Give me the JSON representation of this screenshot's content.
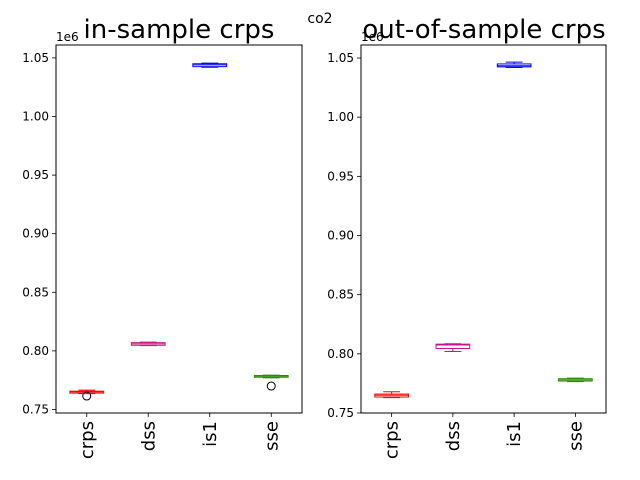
{
  "suptitle": "co2",
  "chart_data": [
    {
      "type": "box",
      "title": "in-sample crps",
      "offset_label": "1e6",
      "ylim": [
        747000,
        1061000
      ],
      "yticks": [
        750000,
        800000,
        850000,
        900000,
        950000,
        1000000,
        1050000
      ],
      "ytick_labels": [
        "0.75",
        "0.80",
        "0.85",
        "0.90",
        "0.95",
        "1.00",
        "1.05"
      ],
      "categories": [
        "crps",
        "dss",
        "is1",
        "sse"
      ],
      "boxes": [
        {
          "name": "crps",
          "color": "#ff0000",
          "min": 763500,
          "q1": 764000,
          "median": 765000,
          "q3": 765600,
          "max": 766500,
          "outliers": [
            761500
          ]
        },
        {
          "name": "dss",
          "color": "#c71585",
          "min": 804500,
          "q1": 804800,
          "median": 806000,
          "q3": 807000,
          "max": 807500,
          "outliers": []
        },
        {
          "name": "is1",
          "color": "#0000ff",
          "min": 1042000,
          "q1": 1042500,
          "median": 1044000,
          "q3": 1045000,
          "max": 1045500,
          "outliers": []
        },
        {
          "name": "sse",
          "color": "#2e8b00",
          "min": 777000,
          "q1": 777500,
          "median": 778000,
          "q3": 779000,
          "max": 779300,
          "outliers": [
            770000
          ]
        }
      ]
    },
    {
      "type": "box",
      "title": "out-of-sample crps",
      "offset_label": "1e6",
      "ylim": [
        750000,
        1061000
      ],
      "yticks": [
        750000,
        800000,
        850000,
        900000,
        950000,
        1000000,
        1050000
      ],
      "ytick_labels": [
        "0.75",
        "0.80",
        "0.85",
        "0.90",
        "0.95",
        "1.00",
        "1.05"
      ],
      "categories": [
        "crps",
        "dss",
        "is1",
        "sse"
      ],
      "boxes": [
        {
          "name": "crps",
          "color": "#ff0000",
          "min": 763000,
          "q1": 763500,
          "median": 765000,
          "q3": 766000,
          "max": 768000,
          "outliers": []
        },
        {
          "name": "dss",
          "color": "#c71585",
          "min": 802000,
          "q1": 804500,
          "median": 807500,
          "q3": 808200,
          "max": 808500,
          "outliers": []
        },
        {
          "name": "is1",
          "color": "#0000ff",
          "min": 1042000,
          "q1": 1042500,
          "median": 1043500,
          "q3": 1045000,
          "max": 1046500,
          "outliers": []
        },
        {
          "name": "sse",
          "color": "#2e8b00",
          "min": 776500,
          "q1": 777000,
          "median": 778000,
          "q3": 779000,
          "max": 779500,
          "outliers": []
        }
      ]
    }
  ]
}
